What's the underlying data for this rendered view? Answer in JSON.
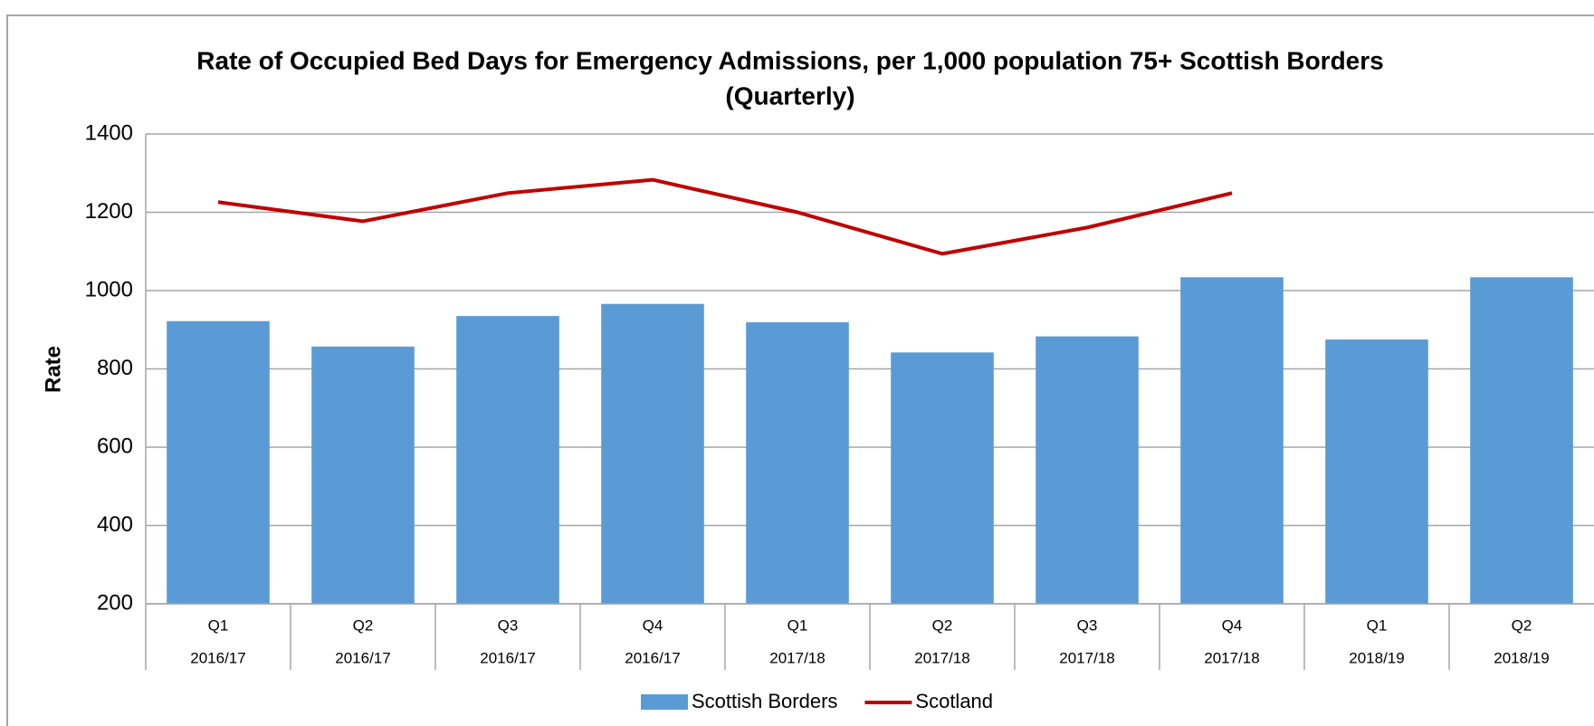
{
  "chart_data": {
    "type": "bar",
    "title": [
      "Rate of Occupied Bed Days for Emergency Admissions, per 1,000 population 75+ Scottish Borders",
      "(Quarterly)"
    ],
    "y_label": "Rate",
    "categories": [
      [
        "Q1",
        "2016/17"
      ],
      [
        "Q2",
        "2016/17"
      ],
      [
        "Q3",
        "2016/17"
      ],
      [
        "Q4",
        "2016/17"
      ],
      [
        "Q1",
        "2017/18"
      ],
      [
        "Q2",
        "2017/18"
      ],
      [
        "Q3",
        "2017/18"
      ],
      [
        "Q4",
        "2017/18"
      ],
      [
        "Q1",
        "2018/19"
      ],
      [
        "Q2",
        "2018/19"
      ]
    ],
    "series": [
      {
        "name": "Scottish Borders",
        "type": "bar",
        "color": "#5b9bd5",
        "values": [
          922,
          857,
          935,
          966,
          919,
          842,
          883,
          1034,
          875,
          1034
        ]
      },
      {
        "name": "Scotland",
        "type": "line",
        "color": "#c00000",
        "values": [
          1226,
          1177,
          1249,
          1283,
          1200,
          1094,
          1161,
          1249,
          null,
          null
        ]
      }
    ],
    "ylim": [
      200,
      1400
    ],
    "yticks": [
      200,
      400,
      600,
      800,
      1000,
      1200,
      1400
    ],
    "grid": true,
    "legend": "bottom"
  }
}
